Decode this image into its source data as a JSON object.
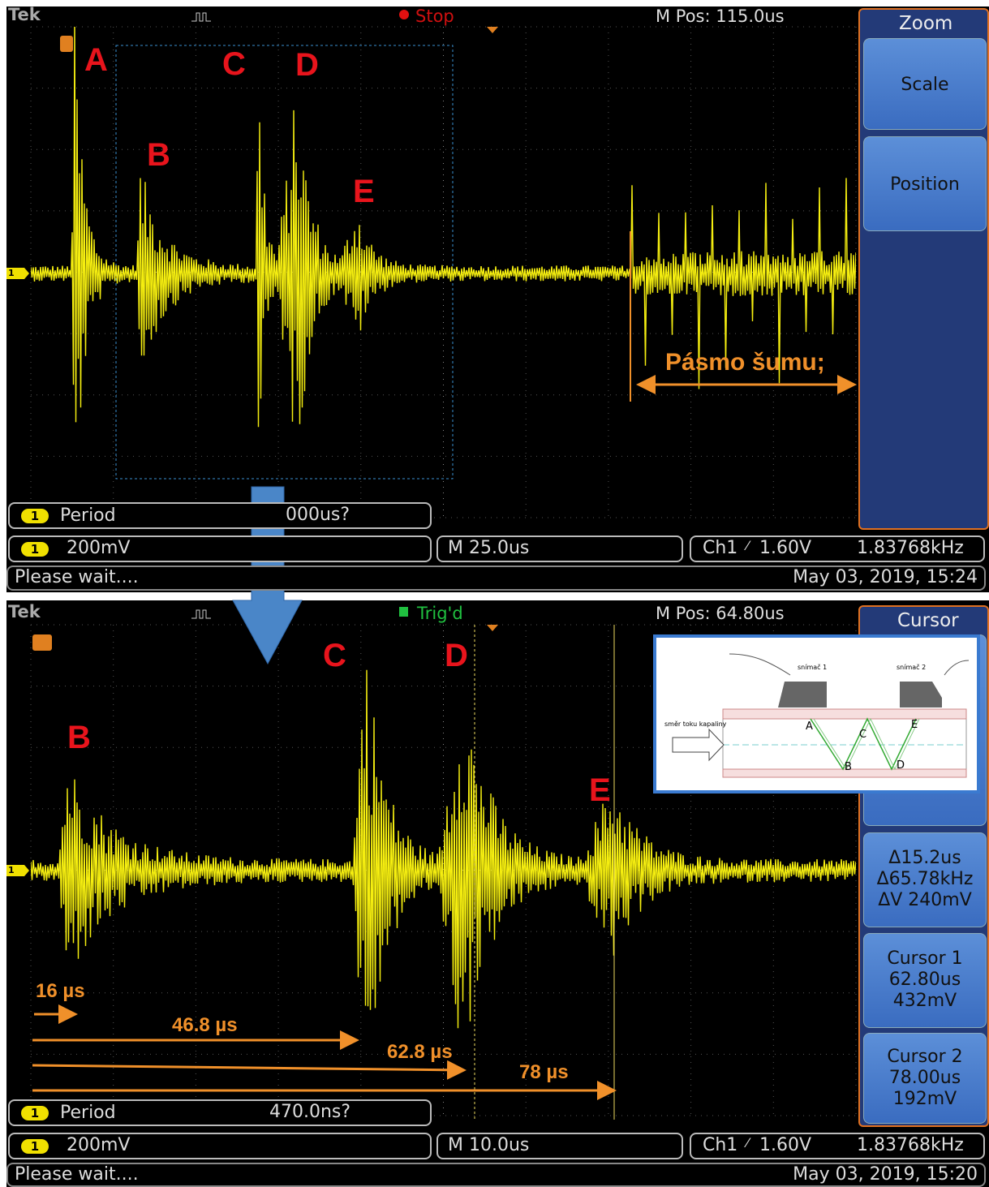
{
  "top": {
    "brand": "Tek",
    "status": "Stop",
    "m_pos": "M Pos: 115.0us",
    "menu_title": "Zoom",
    "buttons": [
      "Scale",
      "Position"
    ],
    "channel": "1",
    "labels": [
      "A",
      "B",
      "C",
      "D",
      "E"
    ],
    "noise_label": "Pásmo šumu;",
    "measurement": {
      "name": "Period",
      "value": "000us?"
    },
    "scale": "200mV",
    "timebase": "M 25.0us",
    "trigger_source": "Ch1",
    "trigger_level": "1.60V",
    "frequency": "1.83768kHz",
    "message": "Please wait....",
    "datetime": "May 03, 2019, 15:24"
  },
  "bottom": {
    "brand": "Tek",
    "status": "Trig'd",
    "m_pos": "M Pos: 64.80us",
    "menu_title": "Cursor",
    "channel": "1",
    "labels": [
      "B",
      "C",
      "D",
      "E"
    ],
    "times": [
      "16 µs",
      "46.8 µs",
      "62.8 µs",
      "78 µs"
    ],
    "readout": {
      "delta_time": "Δ15.2us",
      "delta_freq": "Δ65.78kHz",
      "delta_v": "ΔV 240mV"
    },
    "cursor1": {
      "title": "Cursor 1",
      "time": "62.80us",
      "voltage": "432mV"
    },
    "cursor2": {
      "title": "Cursor 2",
      "time": "78.00us",
      "voltage": "192mV"
    },
    "measurement": {
      "name": "Period",
      "value": "470.0ns?"
    },
    "scale": "200mV",
    "timebase": "M 10.0us",
    "trigger_source": "Ch1",
    "trigger_level": "1.60V",
    "frequency": "1.83768kHz",
    "message": "Please wait....",
    "datetime": "May 03, 2019, 15:20"
  },
  "inset": {
    "sensor1": "snímač 1",
    "sensor2": "snímač 2",
    "flow": "směr toku kapaliny",
    "points": [
      "A",
      "B",
      "C",
      "D",
      "E"
    ]
  }
}
